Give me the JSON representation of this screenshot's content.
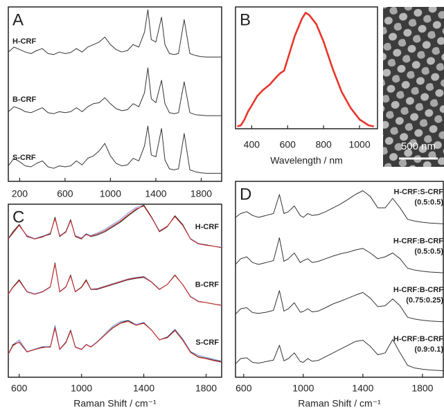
{
  "chart_data": [
    {
      "type": "line",
      "panel_label": "A",
      "xlim": [
        100,
        1980
      ],
      "xticks": [
        200,
        600,
        1000,
        1400,
        1800
      ],
      "x": [
        100,
        150,
        200,
        250,
        300,
        350,
        400,
        450,
        500,
        550,
        600,
        650,
        700,
        750,
        800,
        850,
        900,
        950,
        1000,
        1050,
        1100,
        1150,
        1200,
        1250,
        1300,
        1330,
        1360,
        1400,
        1450,
        1480,
        1520,
        1560,
        1600,
        1650,
        1700,
        1750,
        1800,
        1850,
        1900,
        1980
      ],
      "traces": [
        {
          "label": [
            "H-CRF"
          ],
          "series": [
            {
              "color": "#333333",
              "values": [
                0.15,
                0.25,
                0.2,
                0.15,
                0.12,
                0.18,
                0.22,
                0.12,
                0.1,
                0.15,
                0.12,
                0.14,
                0.22,
                0.15,
                0.25,
                0.3,
                0.35,
                0.45,
                0.3,
                0.2,
                0.15,
                0.18,
                0.3,
                0.25,
                0.55,
                1.0,
                0.4,
                0.35,
                0.85,
                0.3,
                0.12,
                0.1,
                0.12,
                0.8,
                0.12,
                0.08,
                0.06,
                0.05,
                0.05,
                0.05
              ]
            }
          ]
        },
        {
          "label": [
            "B-CRF"
          ],
          "series": [
            {
              "color": "#333333",
              "values": [
                0.12,
                0.22,
                0.18,
                0.12,
                0.1,
                0.15,
                0.2,
                0.1,
                0.08,
                0.12,
                0.1,
                0.12,
                0.2,
                0.12,
                0.22,
                0.28,
                0.3,
                0.4,
                0.28,
                0.18,
                0.14,
                0.16,
                0.28,
                0.22,
                0.5,
                1.0,
                0.38,
                0.3,
                0.75,
                0.28,
                0.1,
                0.08,
                0.1,
                0.72,
                0.1,
                0.06,
                0.05,
                0.04,
                0.04,
                0.04
              ]
            }
          ]
        },
        {
          "label": [
            "S-CRF"
          ],
          "series": [
            {
              "color": "#333333",
              "values": [
                0.2,
                0.35,
                0.28,
                0.2,
                0.18,
                0.25,
                0.3,
                0.18,
                0.15,
                0.2,
                0.18,
                0.2,
                0.3,
                0.22,
                0.35,
                0.4,
                0.5,
                0.65,
                0.4,
                0.25,
                0.2,
                0.22,
                0.35,
                0.3,
                0.6,
                1.0,
                0.42,
                0.38,
                0.95,
                0.32,
                0.14,
                0.12,
                0.14,
                0.85,
                0.12,
                0.08,
                0.06,
                0.05,
                0.05,
                0.05
              ]
            }
          ]
        }
      ]
    },
    {
      "type": "line",
      "panel_label": "B",
      "xlabel": "Wavelength / nm",
      "xlim": [
        310,
        1100
      ],
      "xticks": [
        400,
        600,
        800,
        1000
      ],
      "ylim": [
        0,
        1.05
      ],
      "x": [
        320,
        340,
        360,
        380,
        400,
        430,
        460,
        500,
        540,
        560,
        580,
        600,
        640,
        680,
        700,
        720,
        760,
        800,
        850,
        900,
        950,
        1000,
        1050,
        1080
      ],
      "series": [
        {
          "color": "#e8352a",
          "values": [
            0.02,
            0.03,
            0.08,
            0.15,
            0.2,
            0.28,
            0.33,
            0.38,
            0.45,
            0.48,
            0.5,
            0.6,
            0.8,
            0.95,
            1.0,
            0.98,
            0.9,
            0.75,
            0.52,
            0.32,
            0.18,
            0.08,
            0.03,
            0.02
          ]
        }
      ]
    },
    {
      "type": "line",
      "panel_label": "C",
      "xlabel": "Raman Shift / cm⁻¹",
      "xlim": [
        530,
        1900
      ],
      "xticks": [
        600,
        1000,
        1400,
        1800
      ],
      "x": [
        530,
        560,
        600,
        650,
        700,
        750,
        800,
        830,
        860,
        900,
        930,
        960,
        1000,
        1030,
        1060,
        1100,
        1150,
        1200,
        1250,
        1300,
        1350,
        1400,
        1450,
        1500,
        1550,
        1600,
        1650,
        1700,
        1750,
        1800,
        1850,
        1900
      ],
      "traces": [
        {
          "label": [
            "H-CRF"
          ],
          "series": [
            {
              "color": "#7a8fe0",
              "values": [
                0.32,
                0.44,
                0.58,
                0.37,
                0.31,
                0.36,
                0.42,
                0.73,
                0.37,
                0.46,
                0.69,
                0.37,
                0.32,
                0.41,
                0.37,
                0.42,
                0.5,
                0.6,
                0.7,
                0.84,
                0.95,
                1.0,
                0.76,
                0.47,
                0.56,
                0.77,
                0.59,
                0.31,
                0.21,
                0.18,
                0.15,
                0.13
              ]
            },
            {
              "color": "#222222",
              "values": [
                0.3,
                0.45,
                0.6,
                0.35,
                0.3,
                0.35,
                0.4,
                0.75,
                0.35,
                0.45,
                0.7,
                0.35,
                0.3,
                0.4,
                0.35,
                0.38,
                0.45,
                0.55,
                0.65,
                0.78,
                0.9,
                1.0,
                0.75,
                0.45,
                0.55,
                0.78,
                0.6,
                0.3,
                0.2,
                0.18,
                0.15,
                0.12
              ]
            },
            {
              "color": "#d9322a",
              "values": [
                0.3,
                0.42,
                0.58,
                0.36,
                0.3,
                0.34,
                0.42,
                0.72,
                0.36,
                0.44,
                0.68,
                0.36,
                0.31,
                0.39,
                0.36,
                0.4,
                0.47,
                0.57,
                0.67,
                0.8,
                0.92,
                0.98,
                0.74,
                0.46,
                0.56,
                0.76,
                0.58,
                0.3,
                0.2,
                0.17,
                0.15,
                0.12
              ]
            }
          ]
        },
        {
          "label": [
            "B-CRF"
          ],
          "series": [
            {
              "color": "#7a8fe0",
              "values": [
                0.36,
                0.5,
                0.64,
                0.41,
                0.36,
                0.41,
                0.51,
                0.97,
                0.41,
                0.51,
                0.74,
                0.41,
                0.5,
                0.64,
                0.46,
                0.47,
                0.52,
                0.57,
                0.62,
                0.67,
                0.7,
                0.72,
                0.61,
                0.46,
                0.55,
                0.74,
                0.55,
                0.31,
                0.21,
                0.18,
                0.15,
                0.13
              ]
            },
            {
              "color": "#222222",
              "values": [
                0.35,
                0.5,
                0.65,
                0.4,
                0.35,
                0.4,
                0.5,
                1.0,
                0.4,
                0.5,
                0.75,
                0.4,
                0.5,
                0.65,
                0.45,
                0.45,
                0.5,
                0.55,
                0.6,
                0.65,
                0.68,
                0.7,
                0.6,
                0.45,
                0.55,
                0.75,
                0.55,
                0.3,
                0.2,
                0.18,
                0.15,
                0.12
              ]
            },
            {
              "color": "#d9322a",
              "values": [
                0.35,
                0.49,
                0.63,
                0.4,
                0.35,
                0.4,
                0.5,
                0.98,
                0.4,
                0.5,
                0.73,
                0.4,
                0.49,
                0.63,
                0.45,
                0.46,
                0.51,
                0.56,
                0.61,
                0.66,
                0.69,
                0.71,
                0.6,
                0.45,
                0.55,
                0.74,
                0.55,
                0.3,
                0.2,
                0.18,
                0.15,
                0.12
              ]
            }
          ]
        },
        {
          "label": [
            "S-CRF"
          ],
          "series": [
            {
              "color": "#7a8fe0",
              "values": [
                0.31,
                0.5,
                0.6,
                0.36,
                0.41,
                0.46,
                0.46,
                0.9,
                0.41,
                0.56,
                0.8,
                0.46,
                0.41,
                0.51,
                0.46,
                0.56,
                0.72,
                0.88,
                0.98,
                1.0,
                0.92,
                0.96,
                0.8,
                0.6,
                0.66,
                0.82,
                0.62,
                0.36,
                0.28,
                0.24,
                0.2,
                0.16
              ]
            },
            {
              "color": "#222222",
              "values": [
                0.3,
                0.5,
                0.55,
                0.35,
                0.4,
                0.45,
                0.45,
                0.85,
                0.4,
                0.55,
                0.8,
                0.45,
                0.4,
                0.5,
                0.45,
                0.55,
                0.7,
                0.85,
                0.95,
                1.0,
                0.9,
                0.95,
                0.8,
                0.6,
                0.65,
                0.8,
                0.6,
                0.35,
                0.25,
                0.22,
                0.18,
                0.15
              ]
            },
            {
              "color": "#d9322a",
              "values": [
                0.3,
                0.48,
                0.56,
                0.35,
                0.4,
                0.44,
                0.46,
                0.84,
                0.4,
                0.54,
                0.78,
                0.45,
                0.4,
                0.5,
                0.45,
                0.55,
                0.7,
                0.84,
                0.94,
                0.98,
                0.9,
                0.94,
                0.8,
                0.6,
                0.64,
                0.79,
                0.59,
                0.34,
                0.24,
                0.21,
                0.17,
                0.14
              ]
            }
          ]
        }
      ]
    },
    {
      "type": "line",
      "panel_label": "D",
      "xlabel": "Raman Shift / cm⁻¹",
      "xlim": [
        545,
        1940
      ],
      "xticks": [
        600,
        1000,
        1400,
        1800
      ],
      "x": [
        545,
        580,
        620,
        660,
        700,
        750,
        800,
        840,
        870,
        900,
        940,
        980,
        1000,
        1030,
        1060,
        1100,
        1150,
        1200,
        1250,
        1300,
        1350,
        1400,
        1450,
        1500,
        1550,
        1600,
        1650,
        1700,
        1750,
        1800,
        1850,
        1940
      ],
      "traces": [
        {
          "label": [
            "H-CRF:S-CRF",
            "(0.5:0.5)"
          ],
          "series": [
            {
              "color": "#333333",
              "values": [
                0.25,
                0.35,
                0.4,
                0.3,
                0.25,
                0.3,
                0.35,
                0.85,
                0.35,
                0.4,
                0.55,
                0.3,
                0.25,
                0.35,
                0.3,
                0.32,
                0.4,
                0.5,
                0.6,
                0.72,
                0.85,
                0.95,
                0.8,
                0.5,
                0.5,
                0.75,
                0.5,
                0.2,
                0.15,
                0.12,
                0.1,
                0.08
              ]
            }
          ]
        },
        {
          "label": [
            "H-CRF:B-CRF",
            "(0.5:0.5)"
          ],
          "series": [
            {
              "color": "#333333",
              "values": [
                0.3,
                0.45,
                0.5,
                0.35,
                0.3,
                0.35,
                0.4,
                1.0,
                0.38,
                0.45,
                0.6,
                0.35,
                0.4,
                0.45,
                0.35,
                0.38,
                0.45,
                0.52,
                0.58,
                0.62,
                0.68,
                0.72,
                0.6,
                0.45,
                0.5,
                0.6,
                0.45,
                0.2,
                0.15,
                0.12,
                0.1,
                0.08
              ]
            }
          ]
        },
        {
          "label": [
            "H-CRF:B-CRF",
            "(0.75:0.25)"
          ],
          "series": [
            {
              "color": "#333333",
              "values": [
                0.28,
                0.42,
                0.45,
                0.32,
                0.3,
                0.33,
                0.38,
                0.9,
                0.36,
                0.42,
                0.58,
                0.33,
                0.35,
                0.42,
                0.34,
                0.36,
                0.45,
                0.55,
                0.62,
                0.7,
                0.78,
                0.85,
                0.7,
                0.48,
                0.5,
                0.68,
                0.5,
                0.2,
                0.15,
                0.12,
                0.1,
                0.08
              ]
            }
          ]
        },
        {
          "label": [
            "H-CRF:B-CRF",
            "(0.9:0.1)"
          ],
          "series": [
            {
              "color": "#333333",
              "values": [
                0.26,
                0.4,
                0.42,
                0.3,
                0.28,
                0.32,
                0.36,
                0.75,
                0.34,
                0.4,
                0.55,
                0.32,
                0.3,
                0.4,
                0.33,
                0.35,
                0.45,
                0.55,
                0.65,
                0.75,
                0.85,
                0.88,
                0.72,
                0.5,
                0.55,
                0.9,
                0.55,
                0.22,
                0.15,
                0.12,
                0.1,
                0.08
              ]
            }
          ]
        }
      ]
    }
  ],
  "sem_image": {
    "scale_label": "500 nm"
  }
}
